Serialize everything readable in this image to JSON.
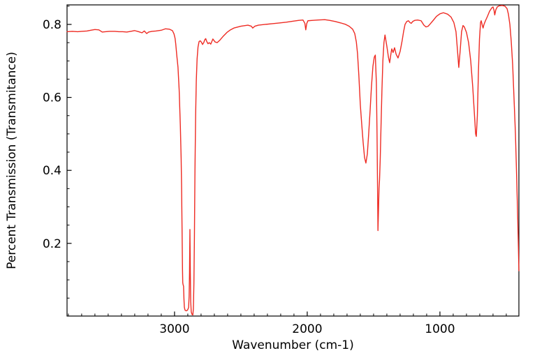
{
  "chart_data": {
    "type": "line",
    "title": "",
    "xlabel": "Wavenumber (cm-1)",
    "ylabel": "Percent Transmission (Transmitance)",
    "x_axis": {
      "min": 405,
      "max": 3810,
      "inverted": true,
      "major_ticks": [
        3000,
        2000,
        1000
      ],
      "major_tick_labels": [
        "3000",
        "2000",
        "1000"
      ],
      "minor_tick_step": 100,
      "tick_direction": "in"
    },
    "y_axis": {
      "min": 0.0008,
      "max": 0.8535,
      "major_ticks": [
        0.8,
        0.6,
        0.4,
        0.2
      ],
      "major_tick_labels": [
        "0.8",
        "0.6",
        "0.4",
        "0.2"
      ],
      "minor_tick_step": 0.05,
      "tick_direction": "in"
    },
    "grid": "off",
    "legend": "none",
    "colors": {
      "line": "#ee2b23",
      "axis": "#000000",
      "background": "#ffffff"
    },
    "series": [
      {
        "name": "IR spectrum",
        "color": "#ee2b23",
        "points": [
          [
            3810,
            0.78
          ],
          [
            3770,
            0.781
          ],
          [
            3730,
            0.78
          ],
          [
            3700,
            0.781
          ],
          [
            3660,
            0.782
          ],
          [
            3630,
            0.784
          ],
          [
            3600,
            0.786
          ],
          [
            3570,
            0.785
          ],
          [
            3545,
            0.779
          ],
          [
            3520,
            0.78
          ],
          [
            3490,
            0.781
          ],
          [
            3450,
            0.781
          ],
          [
            3420,
            0.78
          ],
          [
            3390,
            0.78
          ],
          [
            3360,
            0.779
          ],
          [
            3330,
            0.781
          ],
          [
            3300,
            0.783
          ],
          [
            3270,
            0.78
          ],
          [
            3245,
            0.777
          ],
          [
            3228,
            0.782
          ],
          [
            3210,
            0.775
          ],
          [
            3195,
            0.779
          ],
          [
            3170,
            0.781
          ],
          [
            3140,
            0.782
          ],
          [
            3100,
            0.784
          ],
          [
            3068,
            0.788
          ],
          [
            3040,
            0.787
          ],
          [
            3016,
            0.783
          ],
          [
            3004,
            0.774
          ],
          [
            2996,
            0.762
          ],
          [
            2991,
            0.747
          ],
          [
            2983,
            0.715
          ],
          [
            2974,
            0.683
          ],
          [
            2965,
            0.62
          ],
          [
            2956,
            0.52
          ],
          [
            2950,
            0.43
          ],
          [
            2947,
            0.36
          ],
          [
            2943,
            0.23
          ],
          [
            2940,
            0.13
          ],
          [
            2938,
            0.092
          ],
          [
            2935,
            0.086
          ],
          [
            2932,
            0.083
          ],
          [
            2929,
            0.048
          ],
          [
            2926,
            0.025
          ],
          [
            2921,
            0.017
          ],
          [
            2912,
            0.015
          ],
          [
            2902,
            0.017
          ],
          [
            2894,
            0.024
          ],
          [
            2890,
            0.055
          ],
          [
            2887,
            0.12
          ],
          [
            2884,
            0.238
          ],
          [
            2881,
            0.12
          ],
          [
            2878,
            0.04
          ],
          [
            2874,
            0.012
          ],
          [
            2868,
            0.005
          ],
          [
            2862,
            0.004
          ],
          [
            2858,
            0.02
          ],
          [
            2854,
            0.09
          ],
          [
            2850,
            0.22
          ],
          [
            2846,
            0.4
          ],
          [
            2841,
            0.55
          ],
          [
            2836,
            0.645
          ],
          [
            2830,
            0.705
          ],
          [
            2823,
            0.738
          ],
          [
            2815,
            0.753
          ],
          [
            2806,
            0.755
          ],
          [
            2797,
            0.751
          ],
          [
            2789,
            0.745
          ],
          [
            2780,
            0.75
          ],
          [
            2772,
            0.758
          ],
          [
            2765,
            0.761
          ],
          [
            2757,
            0.753
          ],
          [
            2748,
            0.747
          ],
          [
            2738,
            0.75
          ],
          [
            2727,
            0.746
          ],
          [
            2711,
            0.76
          ],
          [
            2695,
            0.752
          ],
          [
            2679,
            0.75
          ],
          [
            2658,
            0.757
          ],
          [
            2632,
            0.768
          ],
          [
            2605,
            0.778
          ],
          [
            2579,
            0.785
          ],
          [
            2553,
            0.79
          ],
          [
            2500,
            0.795
          ],
          [
            2447,
            0.798
          ],
          [
            2421,
            0.795
          ],
          [
            2411,
            0.79
          ],
          [
            2395,
            0.795
          ],
          [
            2368,
            0.798
          ],
          [
            2316,
            0.8
          ],
          [
            2263,
            0.802
          ],
          [
            2211,
            0.804
          ],
          [
            2158,
            0.806
          ],
          [
            2105,
            0.809
          ],
          [
            2063,
            0.811
          ],
          [
            2032,
            0.812
          ],
          [
            2018,
            0.803
          ],
          [
            2011,
            0.785
          ],
          [
            2004,
            0.802
          ],
          [
            1995,
            0.81
          ],
          [
            1958,
            0.811
          ],
          [
            1921,
            0.812
          ],
          [
            1868,
            0.813
          ],
          [
            1832,
            0.811
          ],
          [
            1789,
            0.808
          ],
          [
            1747,
            0.804
          ],
          [
            1711,
            0.8
          ],
          [
            1684,
            0.795
          ],
          [
            1658,
            0.787
          ],
          [
            1642,
            0.775
          ],
          [
            1630,
            0.752
          ],
          [
            1621,
            0.72
          ],
          [
            1611,
            0.66
          ],
          [
            1600,
            0.58
          ],
          [
            1589,
            0.525
          ],
          [
            1579,
            0.478
          ],
          [
            1568,
            0.435
          ],
          [
            1558,
            0.42
          ],
          [
            1547,
            0.445
          ],
          [
            1537,
            0.5
          ],
          [
            1526,
            0.565
          ],
          [
            1516,
            0.63
          ],
          [
            1505,
            0.685
          ],
          [
            1495,
            0.71
          ],
          [
            1487,
            0.716
          ],
          [
            1479,
            0.64
          ],
          [
            1474,
            0.5
          ],
          [
            1470,
            0.35
          ],
          [
            1467,
            0.235
          ],
          [
            1463,
            0.29
          ],
          [
            1459,
            0.35
          ],
          [
            1455,
            0.375
          ],
          [
            1450,
            0.43
          ],
          [
            1444,
            0.52
          ],
          [
            1437,
            0.62
          ],
          [
            1430,
            0.7
          ],
          [
            1422,
            0.75
          ],
          [
            1414,
            0.771
          ],
          [
            1400,
            0.74
          ],
          [
            1388,
            0.71
          ],
          [
            1379,
            0.695
          ],
          [
            1369,
            0.72
          ],
          [
            1363,
            0.733
          ],
          [
            1353,
            0.723
          ],
          [
            1342,
            0.736
          ],
          [
            1330,
            0.718
          ],
          [
            1316,
            0.708
          ],
          [
            1300,
            0.726
          ],
          [
            1285,
            0.755
          ],
          [
            1274,
            0.78
          ],
          [
            1263,
            0.8
          ],
          [
            1250,
            0.808
          ],
          [
            1237,
            0.81
          ],
          [
            1226,
            0.805
          ],
          [
            1216,
            0.803
          ],
          [
            1205,
            0.808
          ],
          [
            1190,
            0.811
          ],
          [
            1168,
            0.812
          ],
          [
            1142,
            0.81
          ],
          [
            1121,
            0.798
          ],
          [
            1105,
            0.793
          ],
          [
            1089,
            0.795
          ],
          [
            1074,
            0.801
          ],
          [
            1053,
            0.81
          ],
          [
            1026,
            0.822
          ],
          [
            1000,
            0.829
          ],
          [
            974,
            0.832
          ],
          [
            942,
            0.828
          ],
          [
            916,
            0.82
          ],
          [
            895,
            0.805
          ],
          [
            879,
            0.78
          ],
          [
            868,
            0.73
          ],
          [
            858,
            0.682
          ],
          [
            847,
            0.73
          ],
          [
            837,
            0.78
          ],
          [
            826,
            0.797
          ],
          [
            816,
            0.793
          ],
          [
            800,
            0.778
          ],
          [
            784,
            0.75
          ],
          [
            768,
            0.7
          ],
          [
            753,
            0.63
          ],
          [
            742,
            0.565
          ],
          [
            731,
            0.5
          ],
          [
            726,
            0.493
          ],
          [
            718,
            0.55
          ],
          [
            710,
            0.67
          ],
          [
            702,
            0.76
          ],
          [
            694,
            0.805
          ],
          [
            689,
            0.81
          ],
          [
            681,
            0.798
          ],
          [
            675,
            0.79
          ],
          [
            668,
            0.8
          ],
          [
            657,
            0.81
          ],
          [
            642,
            0.822
          ],
          [
            626,
            0.836
          ],
          [
            610,
            0.845
          ],
          [
            600,
            0.848
          ],
          [
            592,
            0.838
          ],
          [
            587,
            0.826
          ],
          [
            579,
            0.84
          ],
          [
            568,
            0.848
          ],
          [
            553,
            0.851
          ],
          [
            531,
            0.852
          ],
          [
            510,
            0.85
          ],
          [
            494,
            0.843
          ],
          [
            484,
            0.828
          ],
          [
            473,
            0.8
          ],
          [
            463,
            0.755
          ],
          [
            452,
            0.69
          ],
          [
            442,
            0.6
          ],
          [
            431,
            0.5
          ],
          [
            424,
            0.41
          ],
          [
            416,
            0.3
          ],
          [
            410,
            0.21
          ],
          [
            405,
            0.125
          ]
        ]
      }
    ]
  }
}
